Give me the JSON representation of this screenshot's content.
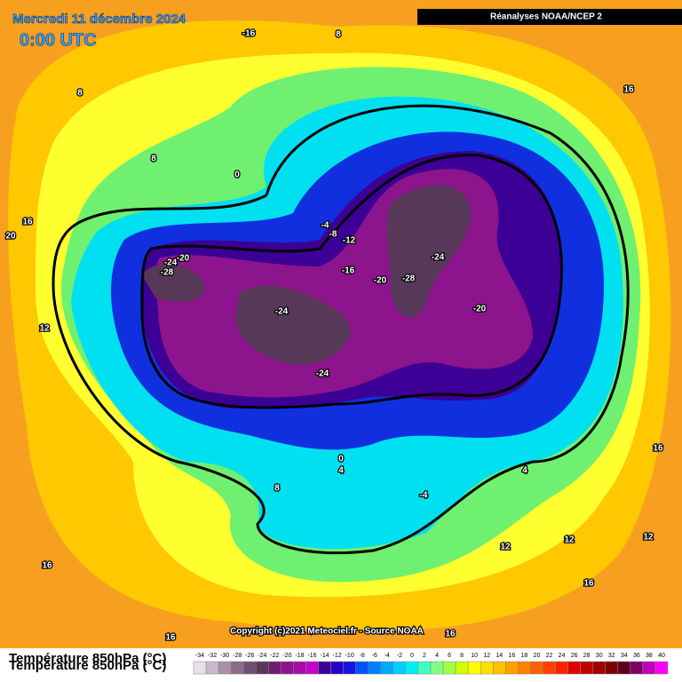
{
  "header": {
    "title": "Mercredi 11 décembre 2024",
    "time": "0:00 UTC",
    "source_box": "Réanalyses NOAA/NCEP 2",
    "copyright": "Copyright (c)2021 Meteociel.fr - Source NOAA"
  },
  "contour_labels": [
    "-16",
    "8",
    "16",
    "8",
    "8",
    "0",
    "16",
    "20",
    "-4",
    "-8",
    "-12",
    "-24",
    "-20",
    "-28",
    "-16",
    "-20",
    "-28",
    "-24",
    "-20",
    "-24",
    "12",
    "-24",
    "0",
    "4",
    "8",
    "4",
    "16",
    "-4",
    "12",
    "12",
    "12",
    "16",
    "16",
    "16",
    "16"
  ],
  "legend": {
    "title": "Température 850hPa (°C)",
    "values": [
      -34,
      -32,
      -30,
      -28,
      -26,
      -24,
      -22,
      -20,
      -18,
      -16,
      -14,
      -12,
      -10,
      -8,
      -6,
      -4,
      -2,
      0,
      2,
      4,
      6,
      8,
      10,
      12,
      14,
      16,
      18,
      20,
      22,
      24,
      26,
      28,
      30,
      32,
      34,
      36,
      38,
      40
    ],
    "colors": [
      "#e8e0e8",
      "#c8b8c8",
      "#a890a8",
      "#8c6c8c",
      "#705070",
      "#583858",
      "#6e1e6e",
      "#8c148c",
      "#aa0aaa",
      "#c800c8",
      "#3c0096",
      "#2800c8",
      "#1414e6",
      "#0050ff",
      "#0080ff",
      "#00a8ff",
      "#00d0ff",
      "#00f0f0",
      "#40ffc0",
      "#80ff80",
      "#a0ff40",
      "#d0ff00",
      "#ffff00",
      "#ffe000",
      "#ffc000",
      "#ffa000",
      "#ff8000",
      "#ff6000",
      "#ff4000",
      "#ff2000",
      "#e00000",
      "#c00000",
      "#a00000",
      "#800000",
      "#600020",
      "#800060",
      "#c000c0",
      "#ff00ff"
    ]
  }
}
